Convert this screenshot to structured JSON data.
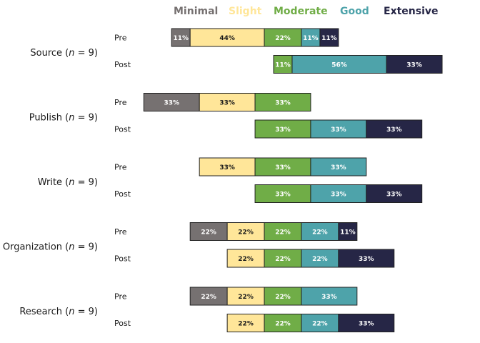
{
  "chart_data": {
    "type": "bar",
    "subtype": "diverging-stacked",
    "legend_position": "top",
    "levels": [
      {
        "name": "Minimal",
        "color": "#767171",
        "text_color": "#ffffff"
      },
      {
        "name": "Slight",
        "color": "#ffe699",
        "text_color": "#1a1a1a"
      },
      {
        "name": "Moderate",
        "color": "#70ad47",
        "text_color": "#ffffff"
      },
      {
        "name": "Good",
        "color": "#4ea3aa",
        "text_color": "#ffffff"
      },
      {
        "name": "Extensive",
        "color": "#262646",
        "text_color": "#ffffff"
      }
    ],
    "categories": [
      {
        "name": "Source",
        "n_label": "n",
        "n_value": "9",
        "rows": [
          {
            "label": "Pre",
            "values": [
              11,
              44,
              22,
              11,
              11
            ],
            "labels": [
              "11%",
              "44%",
              "22%",
              "11%",
              "11%"
            ]
          },
          {
            "label": "Post",
            "values": [
              0,
              0,
              11,
              56,
              33
            ],
            "labels": [
              "",
              "",
              "11%",
              "56%",
              "33%"
            ]
          }
        ]
      },
      {
        "name": "Publish",
        "n_label": "n",
        "n_value": "9",
        "rows": [
          {
            "label": "Pre",
            "values": [
              33,
              33,
              33,
              0,
              0
            ],
            "labels": [
              "33%",
              "33%",
              "33%",
              "",
              ""
            ]
          },
          {
            "label": "Post",
            "values": [
              0,
              0,
              33,
              33,
              33
            ],
            "labels": [
              "",
              "",
              "33%",
              "33%",
              "33%"
            ]
          }
        ]
      },
      {
        "name": "Write",
        "n_label": "n",
        "n_value": "9",
        "rows": [
          {
            "label": "Pre",
            "values": [
              0,
              33,
              33,
              33,
              0
            ],
            "labels": [
              "",
              "33%",
              "33%",
              "33%",
              ""
            ]
          },
          {
            "label": "Post",
            "values": [
              0,
              0,
              33,
              33,
              33
            ],
            "labels": [
              "",
              "",
              "33%",
              "33%",
              "33%"
            ]
          }
        ]
      },
      {
        "name": "Organization",
        "n_label": "n",
        "n_value": "9",
        "rows": [
          {
            "label": "Pre",
            "values": [
              22,
              22,
              22,
              22,
              11
            ],
            "labels": [
              "22%",
              "22%",
              "22%",
              "22%",
              "11%"
            ]
          },
          {
            "label": "Post",
            "values": [
              0,
              22,
              22,
              22,
              33
            ],
            "labels": [
              "",
              "22%",
              "22%",
              "22%",
              "33%"
            ]
          }
        ]
      },
      {
        "name": "Research",
        "n_label": "n",
        "n_value": "9",
        "rows": [
          {
            "label": "Pre",
            "values": [
              22,
              22,
              22,
              33,
              0
            ],
            "labels": [
              "22%",
              "22%",
              "22%",
              "33%",
              ""
            ]
          },
          {
            "label": "Post",
            "values": [
              0,
              22,
              22,
              22,
              33
            ],
            "labels": [
              "",
              "22%",
              "22%",
              "22%",
              "33%"
            ]
          }
        ]
      }
    ]
  }
}
